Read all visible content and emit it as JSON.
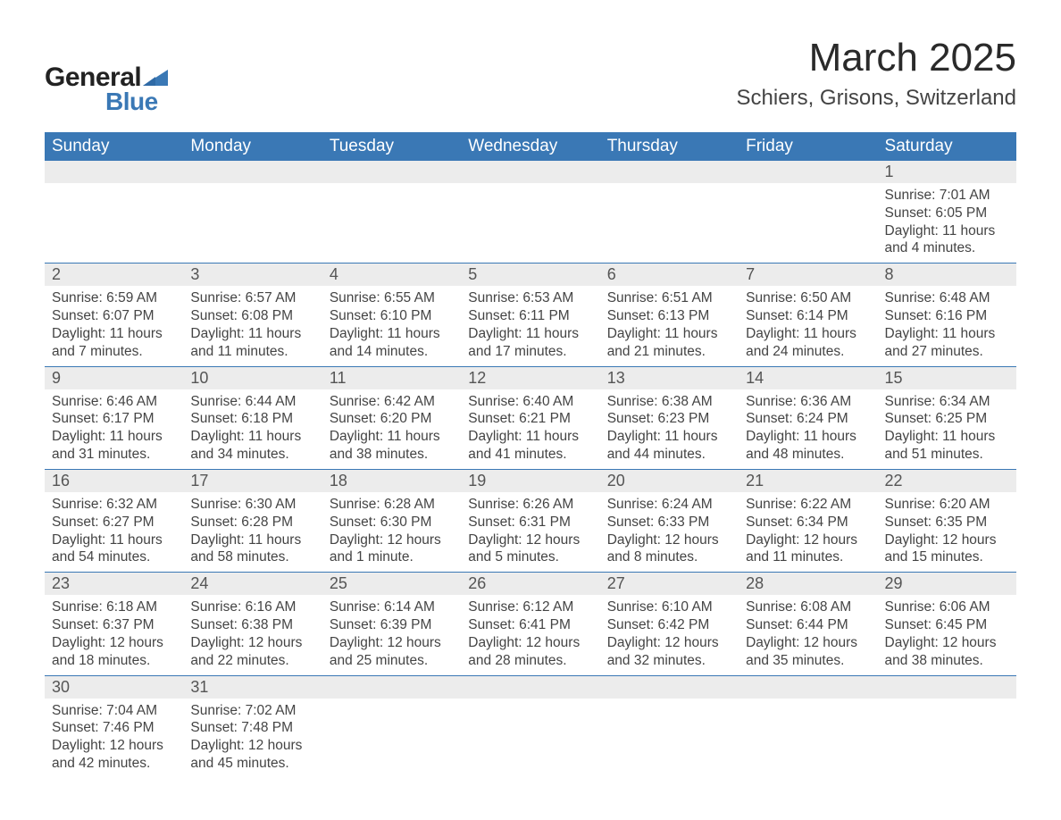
{
  "logo": {
    "general": "General",
    "blue": "Blue",
    "accent_color": "#3a78b5"
  },
  "title": {
    "month": "March 2025",
    "location": "Schiers, Grisons, Switzerland"
  },
  "colors": {
    "header_bg": "#3a78b5",
    "header_text": "#ffffff",
    "daynum_bg": "#ececec",
    "border": "#3a78b5",
    "body_bg": "#ffffff",
    "text": "#444444"
  },
  "typography": {
    "title_fontsize": 44,
    "location_fontsize": 24,
    "header_fontsize": 19,
    "daynum_fontsize": 18,
    "body_fontsize": 15.5
  },
  "days_of_week": [
    "Sunday",
    "Monday",
    "Tuesday",
    "Wednesday",
    "Thursday",
    "Friday",
    "Saturday"
  ],
  "weeks": [
    [
      null,
      null,
      null,
      null,
      null,
      null,
      {
        "n": "1",
        "sunrise": "Sunrise: 7:01 AM",
        "sunset": "Sunset: 6:05 PM",
        "daylight": "Daylight: 11 hours and 4 minutes."
      }
    ],
    [
      {
        "n": "2",
        "sunrise": "Sunrise: 6:59 AM",
        "sunset": "Sunset: 6:07 PM",
        "daylight": "Daylight: 11 hours and 7 minutes."
      },
      {
        "n": "3",
        "sunrise": "Sunrise: 6:57 AM",
        "sunset": "Sunset: 6:08 PM",
        "daylight": "Daylight: 11 hours and 11 minutes."
      },
      {
        "n": "4",
        "sunrise": "Sunrise: 6:55 AM",
        "sunset": "Sunset: 6:10 PM",
        "daylight": "Daylight: 11 hours and 14 minutes."
      },
      {
        "n": "5",
        "sunrise": "Sunrise: 6:53 AM",
        "sunset": "Sunset: 6:11 PM",
        "daylight": "Daylight: 11 hours and 17 minutes."
      },
      {
        "n": "6",
        "sunrise": "Sunrise: 6:51 AM",
        "sunset": "Sunset: 6:13 PM",
        "daylight": "Daylight: 11 hours and 21 minutes."
      },
      {
        "n": "7",
        "sunrise": "Sunrise: 6:50 AM",
        "sunset": "Sunset: 6:14 PM",
        "daylight": "Daylight: 11 hours and 24 minutes."
      },
      {
        "n": "8",
        "sunrise": "Sunrise: 6:48 AM",
        "sunset": "Sunset: 6:16 PM",
        "daylight": "Daylight: 11 hours and 27 minutes."
      }
    ],
    [
      {
        "n": "9",
        "sunrise": "Sunrise: 6:46 AM",
        "sunset": "Sunset: 6:17 PM",
        "daylight": "Daylight: 11 hours and 31 minutes."
      },
      {
        "n": "10",
        "sunrise": "Sunrise: 6:44 AM",
        "sunset": "Sunset: 6:18 PM",
        "daylight": "Daylight: 11 hours and 34 minutes."
      },
      {
        "n": "11",
        "sunrise": "Sunrise: 6:42 AM",
        "sunset": "Sunset: 6:20 PM",
        "daylight": "Daylight: 11 hours and 38 minutes."
      },
      {
        "n": "12",
        "sunrise": "Sunrise: 6:40 AM",
        "sunset": "Sunset: 6:21 PM",
        "daylight": "Daylight: 11 hours and 41 minutes."
      },
      {
        "n": "13",
        "sunrise": "Sunrise: 6:38 AM",
        "sunset": "Sunset: 6:23 PM",
        "daylight": "Daylight: 11 hours and 44 minutes."
      },
      {
        "n": "14",
        "sunrise": "Sunrise: 6:36 AM",
        "sunset": "Sunset: 6:24 PM",
        "daylight": "Daylight: 11 hours and 48 minutes."
      },
      {
        "n": "15",
        "sunrise": "Sunrise: 6:34 AM",
        "sunset": "Sunset: 6:25 PM",
        "daylight": "Daylight: 11 hours and 51 minutes."
      }
    ],
    [
      {
        "n": "16",
        "sunrise": "Sunrise: 6:32 AM",
        "sunset": "Sunset: 6:27 PM",
        "daylight": "Daylight: 11 hours and 54 minutes."
      },
      {
        "n": "17",
        "sunrise": "Sunrise: 6:30 AM",
        "sunset": "Sunset: 6:28 PM",
        "daylight": "Daylight: 11 hours and 58 minutes."
      },
      {
        "n": "18",
        "sunrise": "Sunrise: 6:28 AM",
        "sunset": "Sunset: 6:30 PM",
        "daylight": "Daylight: 12 hours and 1 minute."
      },
      {
        "n": "19",
        "sunrise": "Sunrise: 6:26 AM",
        "sunset": "Sunset: 6:31 PM",
        "daylight": "Daylight: 12 hours and 5 minutes."
      },
      {
        "n": "20",
        "sunrise": "Sunrise: 6:24 AM",
        "sunset": "Sunset: 6:33 PM",
        "daylight": "Daylight: 12 hours and 8 minutes."
      },
      {
        "n": "21",
        "sunrise": "Sunrise: 6:22 AM",
        "sunset": "Sunset: 6:34 PM",
        "daylight": "Daylight: 12 hours and 11 minutes."
      },
      {
        "n": "22",
        "sunrise": "Sunrise: 6:20 AM",
        "sunset": "Sunset: 6:35 PM",
        "daylight": "Daylight: 12 hours and 15 minutes."
      }
    ],
    [
      {
        "n": "23",
        "sunrise": "Sunrise: 6:18 AM",
        "sunset": "Sunset: 6:37 PM",
        "daylight": "Daylight: 12 hours and 18 minutes."
      },
      {
        "n": "24",
        "sunrise": "Sunrise: 6:16 AM",
        "sunset": "Sunset: 6:38 PM",
        "daylight": "Daylight: 12 hours and 22 minutes."
      },
      {
        "n": "25",
        "sunrise": "Sunrise: 6:14 AM",
        "sunset": "Sunset: 6:39 PM",
        "daylight": "Daylight: 12 hours and 25 minutes."
      },
      {
        "n": "26",
        "sunrise": "Sunrise: 6:12 AM",
        "sunset": "Sunset: 6:41 PM",
        "daylight": "Daylight: 12 hours and 28 minutes."
      },
      {
        "n": "27",
        "sunrise": "Sunrise: 6:10 AM",
        "sunset": "Sunset: 6:42 PM",
        "daylight": "Daylight: 12 hours and 32 minutes."
      },
      {
        "n": "28",
        "sunrise": "Sunrise: 6:08 AM",
        "sunset": "Sunset: 6:44 PM",
        "daylight": "Daylight: 12 hours and 35 minutes."
      },
      {
        "n": "29",
        "sunrise": "Sunrise: 6:06 AM",
        "sunset": "Sunset: 6:45 PM",
        "daylight": "Daylight: 12 hours and 38 minutes."
      }
    ],
    [
      {
        "n": "30",
        "sunrise": "Sunrise: 7:04 AM",
        "sunset": "Sunset: 7:46 PM",
        "daylight": "Daylight: 12 hours and 42 minutes."
      },
      {
        "n": "31",
        "sunrise": "Sunrise: 7:02 AM",
        "sunset": "Sunset: 7:48 PM",
        "daylight": "Daylight: 12 hours and 45 minutes."
      },
      null,
      null,
      null,
      null,
      null
    ]
  ]
}
